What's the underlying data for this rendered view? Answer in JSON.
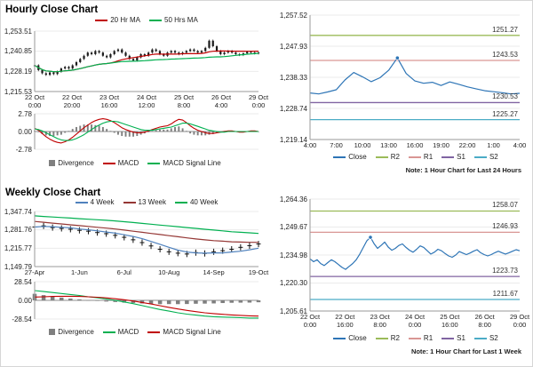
{
  "chart_data": [
    {
      "id": "hourly-close",
      "type": "candlestick",
      "title": "Hourly Close Chart",
      "y_ticks": [
        "1,253.51",
        "1,240.85",
        "1,228.19",
        "1,215.53"
      ],
      "ylim": [
        1215.53,
        1253.51
      ],
      "x_ticks": [
        [
          "22 Oct",
          "0:00"
        ],
        [
          "22 Oct",
          "20:00"
        ],
        [
          "23 Oct",
          "16:00"
        ],
        [
          "24 Oct",
          "12:00"
        ],
        [
          "25 Oct",
          "8:00"
        ],
        [
          "26 Oct",
          "4:00"
        ],
        [
          "29 Oct",
          "0:00"
        ]
      ],
      "series": [
        {
          "name": "Close",
          "type": "candle",
          "color": "#1a1a1a",
          "values": [
            1232,
            1229,
            1227,
            1226,
            1227.5,
            1226.5,
            1228,
            1230,
            1231,
            1230,
            1232,
            1234,
            1236,
            1238,
            1240,
            1239,
            1241,
            1240,
            1238,
            1237,
            1239,
            1241,
            1242,
            1240,
            1238,
            1236,
            1235,
            1237,
            1239,
            1238,
            1240,
            1242,
            1241,
            1239,
            1238,
            1240,
            1241,
            1240,
            1239,
            1240,
            1241,
            1242,
            1241,
            1240,
            1241,
            1243,
            1247.5,
            1244,
            1241,
            1239,
            1240,
            1241,
            1240,
            1239,
            1238.5,
            1239.5,
            1240.5,
            1240,
            1239.5,
            1240
          ]
        },
        {
          "name": "20 Hr MA",
          "type": "line",
          "color": "#c00000",
          "ma": 20
        },
        {
          "name": "50 Hrs MA",
          "type": "line",
          "color": "#00b050",
          "ma": 50
        }
      ],
      "legend": [
        {
          "label": "20 Hr MA",
          "color": "#c00000"
        },
        {
          "label": "50 Hrs MA",
          "color": "#00b050"
        }
      ]
    },
    {
      "id": "hourly-macd",
      "type": "macd",
      "y_ticks": [
        "2.78",
        "0.00",
        "-2.78"
      ],
      "ylim": [
        -2.78,
        2.78
      ],
      "macd_color": "#c00000",
      "signal_color": "#00b050",
      "divergence_color": "#7f7f7f",
      "macd": [
        0.5,
        0.2,
        -0.3,
        -0.8,
        -1.2,
        -1.5,
        -1.7,
        -1.8,
        -1.6,
        -1.3,
        -0.9,
        -0.4,
        0.1,
        0.6,
        1.0,
        1.4,
        1.7,
        1.9,
        2.0,
        1.9,
        1.7,
        1.4,
        1.0,
        0.6,
        0.3,
        0.1,
        -0.1,
        -0.2,
        -0.2,
        -0.1,
        0.1,
        0.3,
        0.5,
        0.7,
        0.8,
        0.9,
        1.2,
        1.6,
        1.9,
        1.8,
        1.4,
        0.9,
        0.5,
        0.2,
        0.0,
        -0.2,
        -0.3,
        -0.3,
        -0.2,
        -0.1,
        0.0,
        0.1,
        0.1,
        0.0,
        -0.1,
        -0.1,
        0.0,
        0.1,
        0.1,
        0.0
      ],
      "signal": [
        0.4,
        0.3,
        0.1,
        -0.2,
        -0.5,
        -0.8,
        -1.1,
        -1.3,
        -1.4,
        -1.4,
        -1.3,
        -1.1,
        -0.8,
        -0.5,
        -0.1,
        0.3,
        0.7,
        1.0,
        1.3,
        1.5,
        1.6,
        1.6,
        1.5,
        1.3,
        1.1,
        0.9,
        0.7,
        0.5,
        0.3,
        0.2,
        0.2,
        0.2,
        0.3,
        0.4,
        0.5,
        0.6,
        0.7,
        0.9,
        1.1,
        1.3,
        1.3,
        1.2,
        1.0,
        0.8,
        0.6,
        0.4,
        0.2,
        0.1,
        0.0,
        -0.1,
        -0.1,
        0.0,
        0.0,
        0.0,
        0.0,
        0.0,
        0.0,
        0.0,
        0.0,
        0.0
      ],
      "legend": [
        {
          "label": "Divergence",
          "color": "#7f7f7f",
          "box": true
        },
        {
          "label": "MACD",
          "color": "#c00000"
        },
        {
          "label": "MACD Signal Line",
          "color": "#00b050"
        }
      ]
    },
    {
      "id": "hourly-sr",
      "type": "line",
      "y_ticks": [
        "1,257.52",
        "1,247.93",
        "1,238.33",
        "1,228.74",
        "1,219.14"
      ],
      "ylim": [
        1219.14,
        1257.52
      ],
      "x_ticks": [
        [
          "4:00"
        ],
        [
          "7:00"
        ],
        [
          "10:00"
        ],
        [
          "13:00"
        ],
        [
          "16:00"
        ],
        [
          "19:00"
        ],
        [
          "22:00"
        ],
        [
          "1:00"
        ],
        [
          "4:00"
        ]
      ],
      "series": [
        {
          "name": "Close",
          "type": "line",
          "color": "#2e75b6",
          "marker_at_max": true,
          "values": [
            1233.5,
            1233.2,
            1233.8,
            1234.5,
            1237.5,
            1239.8,
            1238.5,
            1237,
            1238.2,
            1240.5,
            1244.3,
            1239.5,
            1237.2,
            1236.5,
            1236.8,
            1235.8,
            1236.9,
            1236.2,
            1235.4,
            1234.8,
            1234.2,
            1233.9,
            1233.6,
            1233.2,
            1233.4
          ]
        }
      ],
      "hlines": [
        {
          "name": "R2",
          "value": 1251.27,
          "label": "1251.27",
          "color": "#9bbb59"
        },
        {
          "name": "R1",
          "value": 1243.53,
          "label": "1243.53",
          "color": "#d99694"
        },
        {
          "name": "S1",
          "value": 1230.53,
          "label": "1230.53",
          "color": "#8064a2"
        },
        {
          "name": "S2",
          "value": 1225.27,
          "label": "1225.27",
          "color": "#4bacc6"
        }
      ],
      "legend": [
        {
          "label": "Close",
          "color": "#2e75b6"
        },
        {
          "label": "R2",
          "color": "#9bbb59"
        },
        {
          "label": "R1",
          "color": "#d99694"
        },
        {
          "label": "S1",
          "color": "#8064a2"
        },
        {
          "label": "S2",
          "color": "#4bacc6"
        }
      ],
      "note": "Note: 1 Hour Chart for Last 24 Hours"
    },
    {
      "id": "weekly-close",
      "type": "line",
      "title": "Weekly Close Chart",
      "y_ticks": [
        "1,347.74",
        "1,281.76",
        "1,215.77",
        "1,149.79"
      ],
      "ylim": [
        1149.79,
        1347.74
      ],
      "x_ticks": [
        [
          "27-Apr"
        ],
        [
          "1-Jun"
        ],
        [
          "6-Jul"
        ],
        [
          "10-Aug"
        ],
        [
          "14-Sep"
        ],
        [
          "19-Oct"
        ]
      ],
      "series": [
        {
          "name": "Close",
          "type": "plus",
          "color": "#111111",
          "values": [
            1292,
            1296,
            1290,
            1287,
            1284,
            1280,
            1277,
            1272,
            1268,
            1262,
            1255,
            1246,
            1236,
            1224,
            1212,
            1203,
            1198,
            1195,
            1200,
            1197,
            1203,
            1207,
            1212,
            1219,
            1225,
            1231
          ]
        },
        {
          "name": "4 Week",
          "type": "line",
          "color": "#4f81bd",
          "values": [
            1292,
            1294,
            1293,
            1291,
            1289,
            1285,
            1282,
            1278,
            1274,
            1270,
            1264,
            1258,
            1250,
            1240,
            1230,
            1219,
            1209,
            1202,
            1199,
            1198,
            1199,
            1199,
            1202,
            1205,
            1210,
            1216
          ]
        },
        {
          "name": "13 Week",
          "type": "line",
          "color": "#953735",
          "values": [
            1312,
            1309,
            1306,
            1303,
            1300,
            1297,
            1294,
            1291,
            1288,
            1285,
            1281,
            1277,
            1273,
            1269,
            1265,
            1261,
            1257,
            1253,
            1249,
            1246,
            1243,
            1241,
            1239,
            1238,
            1237,
            1237
          ]
        },
        {
          "name": "40 Week",
          "type": "line",
          "color": "#00b050",
          "values": [
            1332,
            1330,
            1328,
            1326,
            1324,
            1322,
            1320,
            1318,
            1316,
            1314,
            1311,
            1308,
            1305,
            1302,
            1299,
            1296,
            1293,
            1290,
            1287,
            1284,
            1281,
            1278,
            1275,
            1273,
            1271,
            1269
          ]
        }
      ],
      "legend": [
        {
          "label": "4 Week",
          "color": "#4f81bd"
        },
        {
          "label": "13 Week",
          "color": "#953735"
        },
        {
          "label": "40 Week",
          "color": "#00b050"
        }
      ]
    },
    {
      "id": "weekly-macd",
      "type": "macd",
      "y_ticks": [
        "28.54",
        "0.00",
        "-28.54"
      ],
      "ylim": [
        -28.54,
        28.54
      ],
      "macd_color": "#00b050",
      "signal_color": "#c00000",
      "divergence_color": "#7f7f7f",
      "macd": [
        15,
        13.5,
        12,
        10.5,
        9,
        7.5,
        5.5,
        4,
        2,
        0,
        -2.5,
        -5,
        -8,
        -11,
        -14,
        -16.5,
        -19,
        -21,
        -22.5,
        -24,
        -25,
        -25.5,
        -26,
        -26.5,
        -27,
        -27
      ],
      "signal": [
        5,
        5.5,
        6,
        6.2,
        6.3,
        6,
        5.5,
        4.8,
        3.8,
        2.5,
        1,
        -1,
        -3.2,
        -5.6,
        -8.2,
        -10.8,
        -13.2,
        -15.4,
        -17.3,
        -19,
        -20.3,
        -21.4,
        -22.3,
        -23,
        -23.6,
        -24.1
      ],
      "legend": [
        {
          "label": "Divergence",
          "color": "#7f7f7f",
          "box": true
        },
        {
          "label": "MACD",
          "color": "#00b050"
        },
        {
          "label": "MACD Signal Line",
          "color": "#c00000"
        }
      ]
    },
    {
      "id": "weekly-sr",
      "type": "line",
      "y_ticks": [
        "1,264.36",
        "1,249.67",
        "1,234.98",
        "1,220.30",
        "1,205.61"
      ],
      "ylim": [
        1205.61,
        1264.36
      ],
      "x_ticks": [
        [
          "22 Oct",
          "0:00"
        ],
        [
          "22 Oct",
          "16:00"
        ],
        [
          "23 Oct",
          "8:00"
        ],
        [
          "24 Oct",
          "0:00"
        ],
        [
          "25 Oct",
          "16:00"
        ],
        [
          "26 Oct",
          "8:00"
        ],
        [
          "29 Oct",
          "0:00"
        ]
      ],
      "series": [
        {
          "name": "Close",
          "type": "line",
          "color": "#2e75b6",
          "marker_at_max": true,
          "values": [
            1233,
            1231.5,
            1232.5,
            1230.5,
            1229.5,
            1231,
            1232.5,
            1231.5,
            1230,
            1228.5,
            1227.5,
            1229,
            1230.5,
            1232.5,
            1235.5,
            1239,
            1242.5,
            1244.3,
            1241,
            1238.5,
            1240,
            1241.8,
            1239.2,
            1237.5,
            1238.5,
            1240,
            1240.8,
            1239,
            1237.5,
            1236.5,
            1238,
            1239.8,
            1239,
            1237.2,
            1235.5,
            1236.5,
            1238,
            1237.2,
            1235.8,
            1234.5,
            1233.8,
            1235,
            1236.8,
            1236,
            1235.2,
            1236,
            1237,
            1237.8,
            1236.2,
            1235.2,
            1234.5,
            1235.2,
            1236.2,
            1237,
            1236.2,
            1235.5,
            1236.2,
            1237,
            1237.8,
            1237.2
          ]
        }
      ],
      "hlines": [
        {
          "name": "R2",
          "value": 1258.07,
          "label": "1258.07",
          "color": "#9bbb59"
        },
        {
          "name": "R1",
          "value": 1246.93,
          "label": "1246.93",
          "color": "#d99694"
        },
        {
          "name": "S1",
          "value": 1223.73,
          "label": "1223.73",
          "color": "#8064a2"
        },
        {
          "name": "S2",
          "value": 1211.67,
          "label": "1211.67",
          "color": "#4bacc6"
        }
      ],
      "legend": [
        {
          "label": "Close",
          "color": "#2e75b6"
        },
        {
          "label": "R2",
          "color": "#9bbb59"
        },
        {
          "label": "R1",
          "color": "#d99694"
        },
        {
          "label": "S1",
          "color": "#8064a2"
        },
        {
          "label": "S2",
          "color": "#4bacc6"
        }
      ],
      "note": "Note: 1 Hour Chart for Last 1 Week"
    }
  ]
}
